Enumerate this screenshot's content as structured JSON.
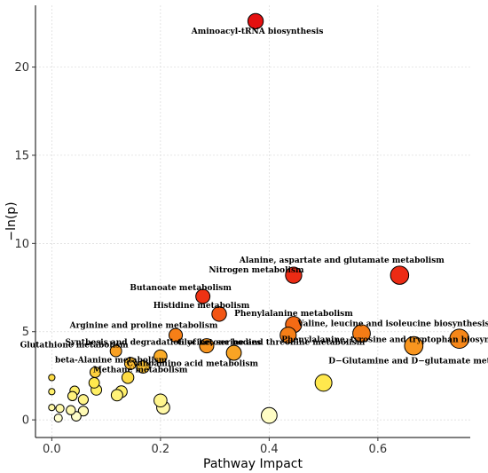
{
  "chart_data": {
    "type": "scatter",
    "title": "",
    "xlabel": "Pathway Impact",
    "ylabel": "−ln(p)",
    "xlim": [
      -0.03,
      0.77
    ],
    "ylim": [
      -1.0,
      23.5
    ],
    "x_ticks": [
      0.0,
      0.2,
      0.4,
      0.6
    ],
    "x_tick_labels": [
      "0.0",
      "0.2",
      "0.4",
      "0.6"
    ],
    "y_ticks": [
      0,
      5,
      10,
      15,
      20
    ],
    "y_tick_labels": [
      "0",
      "5",
      "10",
      "15",
      "20"
    ],
    "grid": true,
    "legend": "none",
    "color_encoding": "-ln(p): light yellow (low) to red (high)",
    "size_encoding": "pathway impact",
    "points": [
      {
        "x": 0.375,
        "y": 22.6,
        "label": "Aminoacyl-tRNA biosynthesis"
      },
      {
        "x": 0.64,
        "y": 8.2,
        "label": "Alanine, aspartate and glutamate metabolism"
      },
      {
        "x": 0.445,
        "y": 8.2,
        "label": "Nitrogen metabolism"
      },
      {
        "x": 0.278,
        "y": 7.0,
        "label": "Butanoate metabolism"
      },
      {
        "x": 0.308,
        "y": 6.0,
        "label": "Histidine metabolism"
      },
      {
        "x": 0.445,
        "y": 5.4,
        "label": "Phenylalanine metabolism"
      },
      {
        "x": 0.57,
        "y": 4.9,
        "label": "Valine, leucine and isoleucine biosynthesis"
      },
      {
        "x": 0.228,
        "y": 4.8,
        "label": "Arginine and proline metabolism"
      },
      {
        "x": 0.435,
        "y": 4.8,
        "label": ""
      },
      {
        "x": 0.75,
        "y": 4.6,
        "label": "Phenylalanine, tyrosine and tryptophan biosynthesis"
      },
      {
        "x": 0.285,
        "y": 4.2,
        "label": "Synthesis and degradation of ketone bodies"
      },
      {
        "x": 0.666,
        "y": 4.2,
        "label": "D−Glutamine and D−glutamate metabolism"
      },
      {
        "x": 0.335,
        "y": 3.8,
        "label": "Glycine, serine and threonine metabolism"
      },
      {
        "x": 0.118,
        "y": 3.9,
        "label": "Glutathione metabolism"
      },
      {
        "x": 0.145,
        "y": 3.2,
        "label": "beta-Alanine metabolism"
      },
      {
        "x": 0.168,
        "y": 3.0,
        "label": ""
      },
      {
        "x": 0.14,
        "y": 2.4,
        "label": "Methane metabolism"
      },
      {
        "x": 0.2,
        "y": 3.6,
        "label": "Cyanoamino acid metabolism"
      },
      {
        "x": 0.08,
        "y": 2.7,
        "label": ""
      },
      {
        "x": 0.078,
        "y": 2.1,
        "label": ""
      },
      {
        "x": 0.5,
        "y": 2.1,
        "label": ""
      },
      {
        "x": 0.128,
        "y": 1.6,
        "label": ""
      },
      {
        "x": 0.12,
        "y": 1.4,
        "label": ""
      },
      {
        "x": 0.082,
        "y": 1.7,
        "label": ""
      },
      {
        "x": 0.042,
        "y": 1.65,
        "label": ""
      },
      {
        "x": 0.038,
        "y": 1.35,
        "label": ""
      },
      {
        "x": 0.058,
        "y": 1.15,
        "label": ""
      },
      {
        "x": 0.0,
        "y": 2.4,
        "label": ""
      },
      {
        "x": 0.0,
        "y": 1.6,
        "label": ""
      },
      {
        "x": 0.0,
        "y": 0.7,
        "label": ""
      },
      {
        "x": 0.015,
        "y": 0.65,
        "label": ""
      },
      {
        "x": 0.035,
        "y": 0.55,
        "label": ""
      },
      {
        "x": 0.058,
        "y": 0.5,
        "label": ""
      },
      {
        "x": 0.012,
        "y": 0.1,
        "label": ""
      },
      {
        "x": 0.045,
        "y": 0.2,
        "label": ""
      },
      {
        "x": 0.2,
        "y": 1.1,
        "label": ""
      },
      {
        "x": 0.205,
        "y": 0.7,
        "label": ""
      },
      {
        "x": 0.4,
        "y": 0.25,
        "label": ""
      }
    ]
  }
}
